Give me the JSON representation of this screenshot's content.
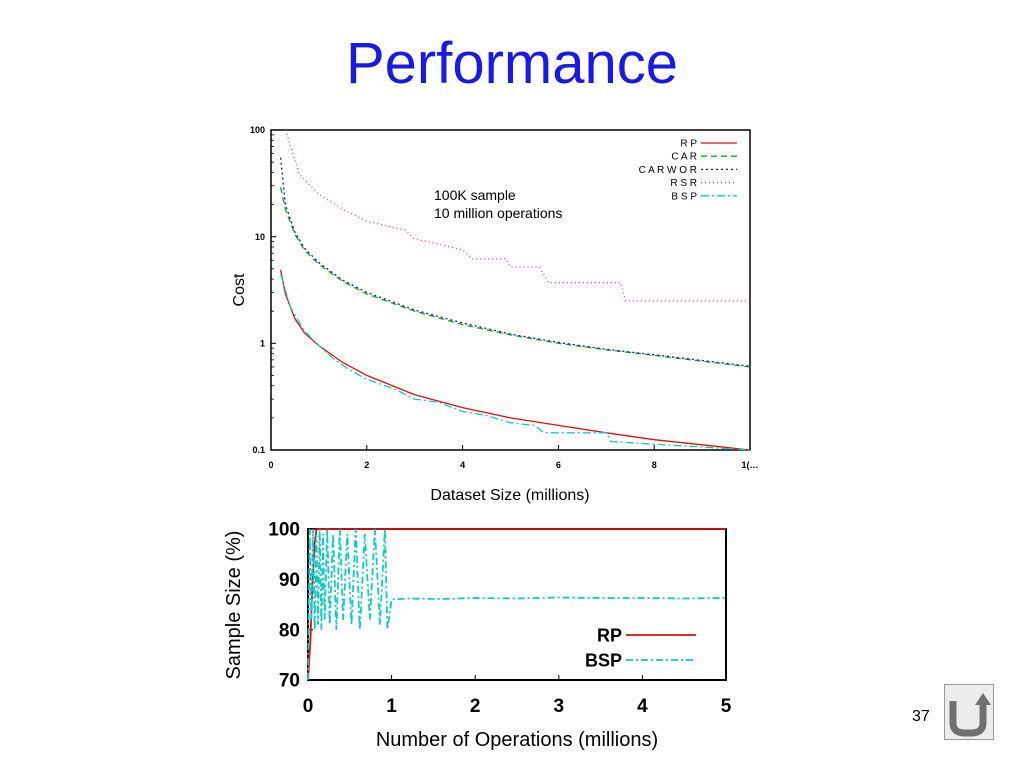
{
  "slide": {
    "title": "Performance",
    "page_number": "37",
    "return_button_icon": "return-u-arrow-icon"
  },
  "chart_data": [
    {
      "type": "line",
      "title": "",
      "xlabel": "Dataset Size (millions)",
      "ylabel": "Cost",
      "xlim": [
        0,
        10
      ],
      "ylim": [
        0.1,
        100
      ],
      "yscale": "log",
      "xticks": [
        "0",
        "2",
        "4",
        "6",
        "8",
        "1(…"
      ],
      "yticks": [
        "0.1",
        "1",
        "10",
        "100"
      ],
      "annotation": [
        "100K sample",
        "10 million operations"
      ],
      "legend_position": "top-right",
      "series": [
        {
          "name": "R P",
          "color": "#e01010",
          "dash": "",
          "x": [
            0.2,
            0.3,
            0.5,
            0.7,
            1,
            1.5,
            2,
            3,
            4,
            5,
            6,
            7,
            8,
            9,
            10
          ],
          "y": [
            4.9,
            2.9,
            1.7,
            1.25,
            0.95,
            0.66,
            0.5,
            0.33,
            0.25,
            0.2,
            0.17,
            0.145,
            0.125,
            0.112,
            0.1
          ]
        },
        {
          "name": "C A R",
          "color": "#10b010",
          "dash": "6,4",
          "x": [
            0.2,
            0.3,
            0.5,
            0.7,
            1,
            1.5,
            2,
            3,
            4,
            5,
            6,
            7,
            8,
            9,
            10
          ],
          "y": [
            29,
            18,
            10.5,
            7.5,
            5.5,
            3.8,
            2.9,
            2.0,
            1.5,
            1.2,
            1.0,
            0.87,
            0.77,
            0.68,
            0.6
          ]
        },
        {
          "name": "C A R W O R",
          "color": "#1010c0",
          "dash": "2,3",
          "x": [
            0.2,
            0.3,
            0.5,
            0.7,
            1,
            1.5,
            2,
            3,
            4,
            5,
            6,
            7,
            8,
            9,
            10
          ],
          "y": [
            55,
            20,
            11,
            7.8,
            5.7,
            3.9,
            3.0,
            2.05,
            1.55,
            1.22,
            1.02,
            0.88,
            0.78,
            0.69,
            0.61
          ]
        },
        {
          "name": "R S R",
          "color": "#d030d0",
          "dash": "1,3",
          "x": [
            0.3,
            0.6,
            1,
            1.5,
            2,
            2.8,
            3,
            3.5,
            4,
            4.2,
            4.9,
            5,
            5.6,
            5.8,
            7.3,
            7.4,
            8,
            10
          ],
          "y": [
            100,
            38,
            25,
            18,
            14,
            11.5,
            9.5,
            8.5,
            7.5,
            6.2,
            6.2,
            5.2,
            5.2,
            3.7,
            3.7,
            2.5,
            2.5,
            2.5
          ]
        },
        {
          "name": "B S P",
          "color": "#10c8c8",
          "dash": "8,3,2,3",
          "x": [
            0.2,
            0.4,
            0.7,
            1,
            1.3,
            1.6,
            2,
            2.6,
            3,
            3.5,
            4,
            4.5,
            5,
            5.5,
            5.7,
            7,
            7.1,
            8.5,
            10
          ],
          "y": [
            4.5,
            2.2,
            1.3,
            0.95,
            0.72,
            0.58,
            0.46,
            0.37,
            0.3,
            0.28,
            0.23,
            0.21,
            0.18,
            0.17,
            0.145,
            0.145,
            0.12,
            0.11,
            0.1
          ]
        }
      ]
    },
    {
      "type": "line",
      "title": "",
      "xlabel": "Number of Operations (millions)",
      "ylabel": "Sample Size (%)",
      "xlim": [
        0,
        5
      ],
      "ylim": [
        70,
        100
      ],
      "xticks": [
        "0",
        "1",
        "2",
        "3",
        "4",
        "5"
      ],
      "yticks": [
        "70",
        "80",
        "90",
        "100"
      ],
      "legend_position": "bottom-right",
      "series": [
        {
          "name": "RP",
          "color": "#e01010",
          "dash": "",
          "x": [
            0.0,
            0.03,
            0.05,
            0.08,
            0.1,
            5
          ],
          "y": [
            70,
            78,
            88,
            97,
            100,
            100
          ]
        },
        {
          "name": "BSP",
          "color": "#10c8c8",
          "dash": "7,3,2,3",
          "x": [
            0.0,
            0.02,
            0.04,
            0.06,
            0.08,
            0.1,
            0.12,
            0.14,
            0.16,
            0.18,
            0.2,
            0.23,
            0.26,
            0.3,
            0.34,
            0.38,
            0.42,
            0.47,
            0.52,
            0.57,
            0.62,
            0.68,
            0.74,
            0.8,
            0.86,
            0.92,
            0.95,
            1.0,
            1.2,
            1.6,
            2.0,
            2.5,
            3.0,
            3.5,
            4.0,
            4.5,
            5.0
          ],
          "y": [
            70,
            100,
            82,
            100,
            80,
            99,
            81,
            100,
            80,
            99,
            82,
            100,
            81,
            99,
            80,
            100,
            82,
            99,
            81,
            100,
            80,
            99,
            82,
            100,
            81,
            100,
            80,
            86,
            86.2,
            86.1,
            86.3,
            86.2,
            86.4,
            86.3,
            86.3,
            86.2,
            86.3
          ]
        }
      ]
    }
  ]
}
